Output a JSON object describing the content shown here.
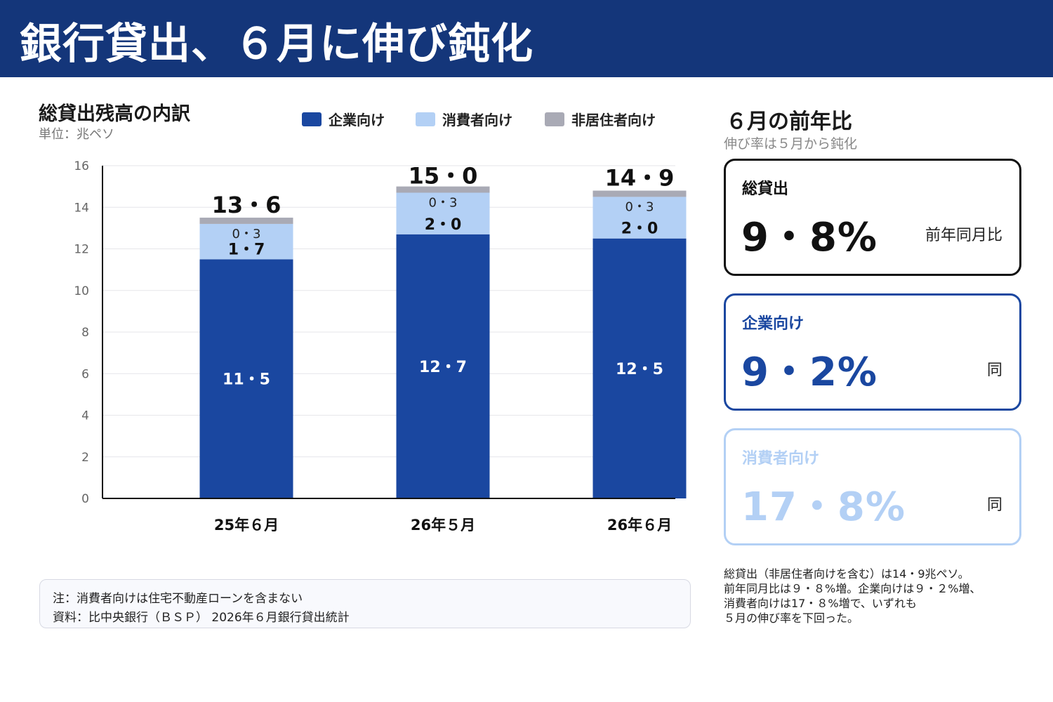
{
  "header": {
    "title": "銀行貸出、６月に伸び鈍化"
  },
  "chart_panel": {
    "title": "総貸出残高の内訳",
    "unit": "単位：兆ペソ",
    "legend": [
      {
        "label": "企業向け",
        "color": "#1a47a0"
      },
      {
        "label": "消費者向け",
        "color": "#b3d0f5"
      },
      {
        "label": "非居住者向け",
        "color": "#a9aab5"
      }
    ]
  },
  "chart_data": {
    "type": "bar",
    "stacked": true,
    "title": "総貸出残高の内訳",
    "ylabel": "単位：兆ペソ",
    "ylim": [
      0,
      16
    ],
    "yticks": [
      0,
      2,
      4,
      6,
      8,
      10,
      12,
      14,
      16
    ],
    "grid": true,
    "legend_position": "top",
    "categories": [
      "25年６月",
      "26年５月",
      "26年６月"
    ],
    "series": [
      {
        "name": "企業向け",
        "values": [
          11.5,
          12.7,
          12.5
        ],
        "labels": [
          "11・5",
          "12・7",
          "12・5"
        ],
        "color": "#1a47a0"
      },
      {
        "name": "消費者向け",
        "values": [
          1.7,
          2.0,
          2.0
        ],
        "labels": [
          "1・7",
          "2・0",
          "2・0"
        ],
        "color": "#b3d0f5"
      },
      {
        "name": "非居住者向け",
        "values": [
          0.3,
          0.3,
          0.3
        ],
        "labels": [
          "0・3",
          "0・3",
          "0・3"
        ],
        "color": "#a9aab5"
      }
    ],
    "totals": [
      13.6,
      15.0,
      14.9
    ],
    "total_labels": [
      "13・6",
      "15・0",
      "14・9"
    ]
  },
  "notes": {
    "line1": "注：消費者向けは住宅不動産ローンを含まない",
    "line2": "資料：比中央銀行（ＢＳＰ） 2026年６月銀行貸出統計"
  },
  "yoy_panel": {
    "title": "６月の前年比",
    "subtitle": "伸び率は５月から鈍化",
    "cards": [
      {
        "label": "総貸出",
        "value": "9・8%",
        "note": "前年同月比"
      },
      {
        "label": "企業向け",
        "value": "9・2%",
        "note": "同"
      },
      {
        "label": "消費者向け",
        "value": "17・8%",
        "note": "同"
      }
    ]
  },
  "summary": {
    "line1": "総貸出（非居住者向けを含む）は14・9兆ペソ。",
    "line2": "前年同月比は９・８%増。企業向けは９・２%増、",
    "line3": "消費者向けは17・８%増で、いずれも",
    "line4": "５月の伸び率を下回った。"
  }
}
